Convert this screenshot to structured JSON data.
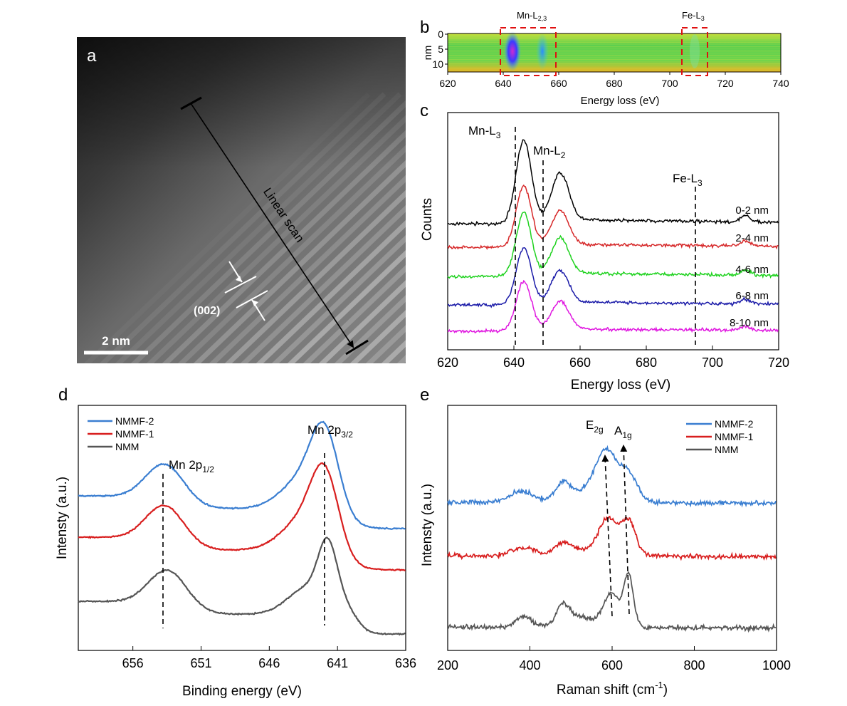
{
  "panels": {
    "a": {
      "letter": "a",
      "scale_bar": "2 nm",
      "scan_label": "Linear scan",
      "plane_label": "(002)"
    },
    "b": {
      "letter": "b",
      "xlabel": "Energy loss (eV)",
      "ylabel": "nm",
      "xticks": [
        "620",
        "640",
        "660",
        "680",
        "700",
        "720",
        "740"
      ],
      "yticks": [
        "0",
        "5",
        "10"
      ],
      "edge_mn": {
        "base": "Mn-L",
        "sub": "2,3"
      },
      "edge_fe": {
        "base": "Fe-L",
        "sub": "3"
      }
    },
    "c": {
      "letter": "c",
      "xlabel": "Energy loss (eV)",
      "ylabel": "Counts",
      "xticks": [
        "620",
        "640",
        "660",
        "680",
        "700",
        "720"
      ],
      "peak_mn_l3": {
        "base": "Mn-L",
        "sub": "3"
      },
      "peak_mn_l2": {
        "base": "Mn-L",
        "sub": "2"
      },
      "peak_fe_l3": {
        "base": "Fe-L",
        "sub": "3"
      }
    },
    "d": {
      "letter": "d",
      "xlabel": "Binding energy (eV)",
      "ylabel": "Intensty (a.u.)",
      "xticks": [
        "656",
        "651",
        "646",
        "641",
        "636"
      ],
      "peak_left": {
        "base": "Mn 2p",
        "sub": "1/2"
      },
      "peak_right": {
        "base": "Mn 2p",
        "sub": "3/2"
      }
    },
    "e": {
      "letter": "e",
      "xlabel_base": "Raman shift (cm",
      "xlabel_sup": "-1",
      "xlabel_end": ")",
      "ylabel": "Intensty (a.u.)",
      "xticks": [
        "200",
        "400",
        "600",
        "800",
        "1000"
      ],
      "peak_e2g": {
        "base": "E",
        "sub": "2g"
      },
      "peak_a1g": {
        "base": "A",
        "sub": "1g"
      }
    }
  },
  "colors": {
    "black": "#000000",
    "red": "#d62728",
    "green": "#1fd21f",
    "blue": "#1a1aa8",
    "magenta": "#e018e0",
    "xps_blue": "#3a7ed1",
    "xps_red": "#d81e1e",
    "xps_gray": "#555555"
  },
  "chart_data": [
    {
      "panel": "c",
      "type": "line",
      "xlabel": "Energy loss (eV)",
      "ylabel": "Counts",
      "xlim": [
        620,
        720
      ],
      "series": [
        {
          "name": "0-2 nm",
          "color": "#000000"
        },
        {
          "name": "2-4 nm",
          "color": "#d62728"
        },
        {
          "name": "4-6 nm",
          "color": "#1fd21f"
        },
        {
          "name": "6-8 nm",
          "color": "#1a1aa8"
        },
        {
          "name": "8-10 nm",
          "color": "#e018e0"
        }
      ],
      "peaks": [
        643,
        654,
        710
      ]
    },
    {
      "panel": "d",
      "type": "line",
      "xlabel": "Binding energy (eV)",
      "ylabel": "Intensty (a.u.)",
      "xlim": [
        660,
        636
      ],
      "series": [
        {
          "name": "NMMF-2",
          "color": "#3a7ed1"
        },
        {
          "name": "NMMF-1",
          "color": "#d81e1e"
        },
        {
          "name": "NMM",
          "color": "#555555"
        }
      ],
      "peaks": [
        653.5,
        641.8
      ]
    },
    {
      "panel": "e",
      "type": "line",
      "xlabel": "Raman shift (cm-1)",
      "ylabel": "Intensty (a.u.)",
      "xlim": [
        200,
        1000
      ],
      "series": [
        {
          "name": "NMMF-2",
          "color": "#3a7ed1"
        },
        {
          "name": "NMMF-1",
          "color": "#d81e1e"
        },
        {
          "name": "NMM",
          "color": "#555555"
        }
      ],
      "peaks": [
        590,
        635
      ]
    }
  ]
}
